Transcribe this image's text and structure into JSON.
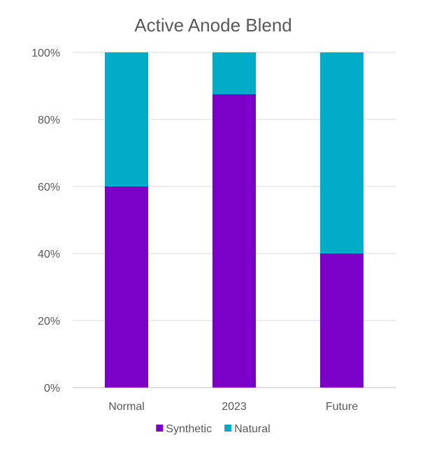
{
  "chart_data": {
    "type": "bar",
    "stacked": true,
    "title": "Active Anode Blend",
    "xlabel": "",
    "ylabel": "",
    "categories": [
      "Normal",
      "2023",
      "Future"
    ],
    "series": [
      {
        "name": "Synthetic",
        "values": [
          60,
          87.5,
          40
        ],
        "color": "#7B00C8"
      },
      {
        "name": "Natural",
        "values": [
          40,
          12.5,
          60
        ],
        "color": "#00ACC8"
      }
    ],
    "ylim": [
      0,
      100
    ],
    "yticks": [
      "0%",
      "20%",
      "40%",
      "60%",
      "80%",
      "100%"
    ],
    "grid": true,
    "legend_position": "bottom"
  }
}
